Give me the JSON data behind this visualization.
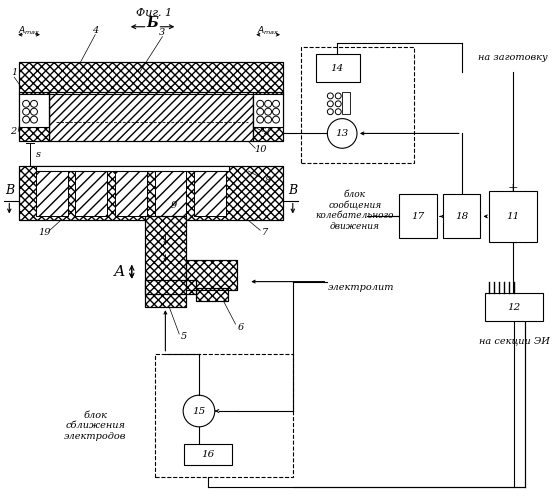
{
  "title": "Фиг. 1",
  "bg_color": "#ffffff",
  "labels": {
    "blok_sblizheniya": "блок\nсближения\nэлектродов",
    "elektrolit": "электролит",
    "blok_kolebaniy": "блок\nсообщения\nколебательного\nдвижения",
    "na_sektsii": "на секции ЭИ",
    "na_zagotovku": "на заготовку",
    "A": "А",
    "B": "Б",
    "Bv": "В",
    "s_label": "s"
  }
}
